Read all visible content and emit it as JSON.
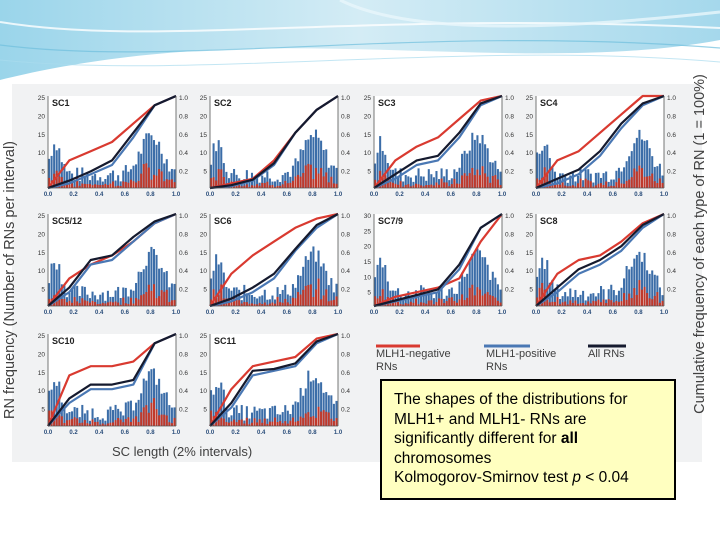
{
  "figure": {
    "y_axis_left": "RN frequency (Number of RNs per interval)",
    "y_axis_right": "Cumulative frequency of each type of RN (1 = 100%)",
    "x_axis": "SC length (2% intervals)"
  },
  "legend": {
    "negative": "MLH1-negative RNs",
    "positive": "MLH1-positive RNs",
    "all": "All RNs"
  },
  "note": {
    "line1": "The shapes of the distributions for",
    "line2": "MLH1+ and MLH1- RNs are",
    "line3_prefix": "significantly different for ",
    "line3_bold": "all",
    "line4": "chromosomes",
    "line5_prefix": "Kolmogorov-Smirnov test ",
    "line5_italic": "p",
    "line5_suffix": " < 0.04"
  },
  "colors": {
    "negative": "#d93a30",
    "positive": "#4a78b4",
    "all": "#151a2e",
    "bars_blue": "#3b6da8",
    "bars_red": "#c0392b"
  },
  "chart_data": [
    {
      "type": "bar",
      "title": "SC1",
      "ylim": [
        0,
        25
      ],
      "y2lim": [
        0,
        1.0
      ],
      "xlim": [
        0,
        1.0
      ],
      "x_ticks": [
        "0.0",
        "0.2",
        "0.4",
        "0.6",
        "0.8",
        "1.0"
      ],
      "y_ticks": [
        "25",
        "20",
        "15",
        "10",
        "5"
      ],
      "y2_ticks": [
        "1.0",
        "0.8",
        "0.6",
        "0.4",
        "0.2"
      ],
      "series": [
        {
          "name": "MLH1-negative RNs",
          "cumulative": [
            0.0,
            0.3,
            0.4,
            0.5,
            0.7,
            0.9,
            1.0
          ]
        },
        {
          "name": "MLH1-positive RNs",
          "cumulative": [
            0.0,
            0.05,
            0.15,
            0.25,
            0.55,
            0.9,
            1.0
          ]
        },
        {
          "name": "All RNs",
          "cumulative": [
            0.0,
            0.08,
            0.18,
            0.3,
            0.6,
            0.9,
            1.0
          ]
        }
      ]
    },
    {
      "type": "bar",
      "title": "SC2",
      "ylim": [
        0,
        25
      ],
      "y2lim": [
        0,
        1.0
      ],
      "xlim": [
        0,
        1.0
      ],
      "x_ticks": [
        "0.0",
        "0.2",
        "0.4",
        "0.6",
        "0.8",
        "1.0"
      ],
      "y_ticks": [
        "25",
        "20",
        "15",
        "10",
        "5"
      ],
      "y2_ticks": [
        "1.0",
        "0.8",
        "0.6",
        "0.4",
        "0.2"
      ],
      "series": [
        {
          "name": "MLH1-negative RNs",
          "cumulative": [
            0.0,
            0.05,
            0.1,
            0.3,
            0.6,
            0.85,
            1.0
          ]
        },
        {
          "name": "MLH1-positive RNs",
          "cumulative": [
            0.0,
            0.02,
            0.08,
            0.25,
            0.6,
            0.85,
            1.0
          ]
        },
        {
          "name": "All RNs",
          "cumulative": [
            0.0,
            0.03,
            0.09,
            0.27,
            0.6,
            0.85,
            1.0
          ]
        }
      ]
    },
    {
      "type": "bar",
      "title": "SC3",
      "ylim": [
        0,
        25
      ],
      "y2lim": [
        0,
        1.0
      ],
      "xlim": [
        0,
        1.0
      ],
      "x_ticks": [
        "0.0",
        "0.2",
        "0.4",
        "0.6",
        "0.8",
        "1.0"
      ],
      "y_ticks": [
        "25",
        "20",
        "15",
        "10",
        "5"
      ],
      "y2_ticks": [
        "1.0",
        "0.8",
        "0.6",
        "0.4",
        "0.2"
      ],
      "series": [
        {
          "name": "MLH1-negative RNs",
          "cumulative": [
            0.0,
            0.3,
            0.45,
            0.55,
            0.75,
            0.95,
            1.0
          ]
        },
        {
          "name": "MLH1-positive RNs",
          "cumulative": [
            0.0,
            0.1,
            0.25,
            0.3,
            0.55,
            0.9,
            1.0
          ]
        },
        {
          "name": "All RNs",
          "cumulative": [
            0.0,
            0.15,
            0.3,
            0.35,
            0.6,
            0.92,
            1.0
          ]
        }
      ]
    },
    {
      "type": "bar",
      "title": "SC4",
      "ylim": [
        0,
        25
      ],
      "y2lim": [
        0,
        1.0
      ],
      "xlim": [
        0,
        1.0
      ],
      "x_ticks": [
        "0.0",
        "0.2",
        "0.4",
        "0.6",
        "0.8",
        "1.0"
      ],
      "y_ticks": [
        "25",
        "20",
        "15",
        "10",
        "5"
      ],
      "y2_ticks": [
        "1.0",
        "0.8",
        "0.6",
        "0.4",
        "0.2"
      ],
      "series": [
        {
          "name": "MLH1-negative RNs",
          "cumulative": [
            0.0,
            0.3,
            0.4,
            0.6,
            0.8,
            1.0,
            1.0
          ]
        },
        {
          "name": "MLH1-positive RNs",
          "cumulative": [
            0.0,
            0.05,
            0.15,
            0.35,
            0.65,
            0.9,
            1.0
          ]
        },
        {
          "name": "All RNs",
          "cumulative": [
            0.0,
            0.1,
            0.2,
            0.4,
            0.7,
            0.92,
            1.0
          ]
        }
      ]
    },
    {
      "type": "bar",
      "title": "SC5/12",
      "ylim": [
        0,
        25
      ],
      "y2lim": [
        0,
        1.0
      ],
      "xlim": [
        0,
        1.0
      ],
      "x_ticks": [
        "0.0",
        "0.2",
        "0.4",
        "0.6",
        "0.8",
        "1.0"
      ],
      "y_ticks": [
        "25",
        "20",
        "15",
        "10",
        "5"
      ],
      "y2_ticks": [
        "1.0",
        "0.8",
        "0.6",
        "0.4",
        "0.2"
      ],
      "series": [
        {
          "name": "MLH1-negative RNs",
          "cumulative": [
            0.0,
            0.3,
            0.45,
            0.55,
            0.7,
            0.9,
            1.0
          ]
        },
        {
          "name": "MLH1-positive RNs",
          "cumulative": [
            0.0,
            0.15,
            0.45,
            0.5,
            0.7,
            0.9,
            1.0
          ]
        },
        {
          "name": "All RNs",
          "cumulative": [
            0.0,
            0.2,
            0.5,
            0.55,
            0.75,
            0.92,
            1.0
          ]
        }
      ]
    },
    {
      "type": "bar",
      "title": "SC6",
      "ylim": [
        0,
        25
      ],
      "y2lim": [
        0,
        1.0
      ],
      "xlim": [
        0,
        1.0
      ],
      "x_ticks": [
        "0.0",
        "0.2",
        "0.4",
        "0.6",
        "0.8",
        "1.0"
      ],
      "y_ticks": [
        "25",
        "20",
        "15",
        "10",
        "5"
      ],
      "y2_ticks": [
        "1.0",
        "0.8",
        "0.6",
        "0.4",
        "0.2"
      ],
      "series": [
        {
          "name": "MLH1-negative RNs",
          "cumulative": [
            0.0,
            0.35,
            0.55,
            0.7,
            0.85,
            0.95,
            1.0
          ]
        },
        {
          "name": "MLH1-positive RNs",
          "cumulative": [
            0.0,
            0.05,
            0.15,
            0.3,
            0.6,
            0.85,
            1.0
          ]
        },
        {
          "name": "All RNs",
          "cumulative": [
            0.0,
            0.08,
            0.2,
            0.35,
            0.62,
            0.88,
            1.0
          ]
        }
      ]
    },
    {
      "type": "bar",
      "title": "SC7/9",
      "ylim": [
        0,
        30
      ],
      "y2lim": [
        0,
        1.0
      ],
      "xlim": [
        0,
        1.0
      ],
      "x_ticks": [
        "0.0",
        "0.2",
        "0.4",
        "0.6",
        "0.8",
        "1.0"
      ],
      "y_ticks": [
        "30",
        "25",
        "20",
        "15",
        "10",
        "5"
      ],
      "y2_ticks": [
        "1.0",
        "0.8",
        "0.6",
        "0.4",
        "0.2"
      ],
      "series": [
        {
          "name": "MLH1-negative RNs",
          "cumulative": [
            0.0,
            0.1,
            0.15,
            0.2,
            0.3,
            0.7,
            1.0
          ]
        },
        {
          "name": "MLH1-positive RNs",
          "cumulative": [
            0.0,
            0.05,
            0.1,
            0.15,
            0.4,
            0.85,
            1.0
          ]
        },
        {
          "name": "All RNs",
          "cumulative": [
            0.0,
            0.06,
            0.12,
            0.18,
            0.45,
            0.85,
            1.0
          ]
        }
      ]
    },
    {
      "type": "bar",
      "title": "SC8",
      "ylim": [
        0,
        25
      ],
      "y2lim": [
        0,
        1.0
      ],
      "xlim": [
        0,
        1.0
      ],
      "x_ticks": [
        "0.0",
        "0.2",
        "0.4",
        "0.6",
        "0.8",
        "1.0"
      ],
      "y_ticks": [
        "25",
        "20",
        "15",
        "10",
        "5"
      ],
      "y2_ticks": [
        "1.0",
        "0.8",
        "0.6",
        "0.4",
        "0.2"
      ],
      "series": [
        {
          "name": "MLH1-negative RNs",
          "cumulative": [
            0.0,
            0.35,
            0.5,
            0.55,
            0.7,
            0.9,
            1.0
          ]
        },
        {
          "name": "MLH1-positive RNs",
          "cumulative": [
            0.0,
            0.15,
            0.35,
            0.45,
            0.6,
            0.85,
            1.0
          ]
        },
        {
          "name": "All RNs",
          "cumulative": [
            0.0,
            0.2,
            0.4,
            0.5,
            0.65,
            0.88,
            1.0
          ]
        }
      ]
    },
    {
      "type": "bar",
      "title": "SC10",
      "ylim": [
        0,
        25
      ],
      "y2lim": [
        0,
        1.0
      ],
      "xlim": [
        0,
        1.0
      ],
      "x_ticks": [
        "0.0",
        "0.2",
        "0.4",
        "0.6",
        "0.8",
        "1.0"
      ],
      "y_ticks": [
        "25",
        "20",
        "15",
        "10",
        "5"
      ],
      "y2_ticks": [
        "1.0",
        "0.8",
        "0.6",
        "0.4",
        "0.2"
      ],
      "series": [
        {
          "name": "MLH1-negative RNs",
          "cumulative": [
            0.0,
            0.55,
            0.65,
            0.65,
            0.7,
            0.9,
            1.0
          ]
        },
        {
          "name": "MLH1-positive RNs",
          "cumulative": [
            0.0,
            0.25,
            0.4,
            0.4,
            0.45,
            0.9,
            1.0
          ]
        },
        {
          "name": "All RNs",
          "cumulative": [
            0.0,
            0.3,
            0.45,
            0.45,
            0.5,
            0.9,
            1.0
          ]
        }
      ]
    },
    {
      "type": "bar",
      "title": "SC11",
      "ylim": [
        0,
        25
      ],
      "y2lim": [
        0,
        1.0
      ],
      "xlim": [
        0,
        1.0
      ],
      "x_ticks": [
        "0.0",
        "0.2",
        "0.4",
        "0.6",
        "0.8",
        "1.0"
      ],
      "y_ticks": [
        "25",
        "20",
        "15",
        "10",
        "5"
      ],
      "y2_ticks": [
        "1.0",
        "0.8",
        "0.6",
        "0.4",
        "0.2"
      ],
      "series": [
        {
          "name": "MLH1-negative RNs",
          "cumulative": [
            0.0,
            0.4,
            0.65,
            0.7,
            0.75,
            0.95,
            1.0
          ]
        },
        {
          "name": "MLH1-positive RNs",
          "cumulative": [
            0.0,
            0.2,
            0.55,
            0.6,
            0.65,
            0.9,
            1.0
          ]
        },
        {
          "name": "All RNs",
          "cumulative": [
            0.0,
            0.25,
            0.6,
            0.62,
            0.68,
            0.92,
            1.0
          ]
        }
      ]
    }
  ]
}
